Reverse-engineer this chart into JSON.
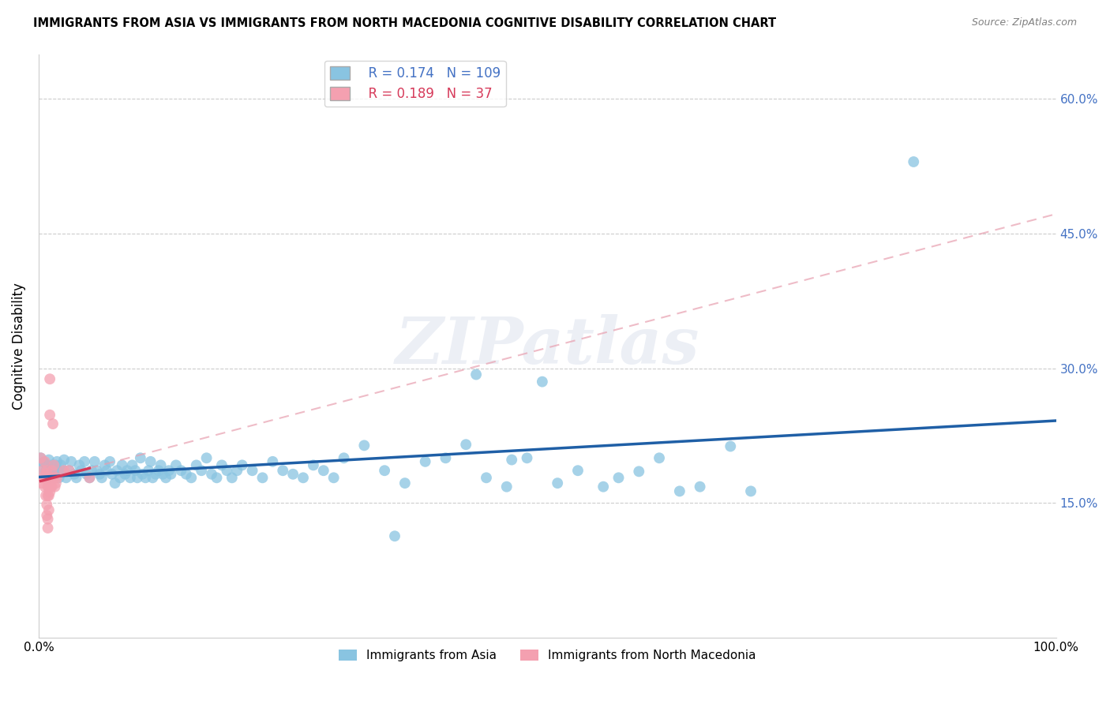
{
  "title": "IMMIGRANTS FROM ASIA VS IMMIGRANTS FROM NORTH MACEDONIA COGNITIVE DISABILITY CORRELATION CHART",
  "source": "Source: ZipAtlas.com",
  "ylabel": "Cognitive Disability",
  "xlim": [
    0,
    1.0
  ],
  "ylim": [
    0,
    0.65
  ],
  "yticks": [
    0.15,
    0.3,
    0.45,
    0.6
  ],
  "ytick_labels": [
    "15.0%",
    "30.0%",
    "45.0%",
    "60.0%"
  ],
  "xticks": [
    0.0,
    0.1,
    0.2,
    0.3,
    0.4,
    0.5,
    0.6,
    0.7,
    0.8,
    0.9,
    1.0
  ],
  "xtick_labels": [
    "0.0%",
    "",
    "",
    "",
    "",
    "",
    "",
    "",
    "",
    "",
    "100.0%"
  ],
  "R_asia": 0.174,
  "N_asia": 109,
  "R_macedonia": 0.189,
  "N_macedonia": 37,
  "color_asia": "#89C4E1",
  "color_macedonia": "#F4A0B0",
  "trendline_asia_color": "#1F5FA6",
  "trendline_macedonia_color": "#D63A5A",
  "trendline_macedonia_dashed_color": "#E8A0B0",
  "watermark_text": "ZIPatlas",
  "asia_points": [
    [
      0.002,
      0.2
    ],
    [
      0.003,
      0.188
    ],
    [
      0.005,
      0.195
    ],
    [
      0.007,
      0.185
    ],
    [
      0.008,
      0.192
    ],
    [
      0.009,
      0.182
    ],
    [
      0.01,
      0.198
    ],
    [
      0.011,
      0.178
    ],
    [
      0.012,
      0.186
    ],
    [
      0.013,
      0.192
    ],
    [
      0.014,
      0.182
    ],
    [
      0.015,
      0.178
    ],
    [
      0.016,
      0.186
    ],
    [
      0.017,
      0.192
    ],
    [
      0.018,
      0.196
    ],
    [
      0.019,
      0.186
    ],
    [
      0.02,
      0.178
    ],
    [
      0.021,
      0.182
    ],
    [
      0.022,
      0.192
    ],
    [
      0.023,
      0.186
    ],
    [
      0.025,
      0.198
    ],
    [
      0.027,
      0.178
    ],
    [
      0.03,
      0.186
    ],
    [
      0.032,
      0.196
    ],
    [
      0.035,
      0.182
    ],
    [
      0.037,
      0.178
    ],
    [
      0.04,
      0.192
    ],
    [
      0.042,
      0.186
    ],
    [
      0.045,
      0.196
    ],
    [
      0.047,
      0.182
    ],
    [
      0.05,
      0.178
    ],
    [
      0.052,
      0.186
    ],
    [
      0.055,
      0.196
    ],
    [
      0.057,
      0.186
    ],
    [
      0.06,
      0.182
    ],
    [
      0.062,
      0.178
    ],
    [
      0.065,
      0.192
    ],
    [
      0.067,
      0.186
    ],
    [
      0.07,
      0.196
    ],
    [
      0.072,
      0.182
    ],
    [
      0.075,
      0.172
    ],
    [
      0.077,
      0.186
    ],
    [
      0.08,
      0.178
    ],
    [
      0.082,
      0.192
    ],
    [
      0.085,
      0.182
    ],
    [
      0.087,
      0.186
    ],
    [
      0.09,
      0.178
    ],
    [
      0.092,
      0.192
    ],
    [
      0.095,
      0.186
    ],
    [
      0.097,
      0.178
    ],
    [
      0.1,
      0.2
    ],
    [
      0.102,
      0.182
    ],
    [
      0.105,
      0.178
    ],
    [
      0.108,
      0.186
    ],
    [
      0.11,
      0.196
    ],
    [
      0.112,
      0.178
    ],
    [
      0.115,
      0.182
    ],
    [
      0.118,
      0.186
    ],
    [
      0.12,
      0.192
    ],
    [
      0.122,
      0.182
    ],
    [
      0.125,
      0.178
    ],
    [
      0.128,
      0.186
    ],
    [
      0.13,
      0.182
    ],
    [
      0.135,
      0.192
    ],
    [
      0.14,
      0.186
    ],
    [
      0.145,
      0.182
    ],
    [
      0.15,
      0.178
    ],
    [
      0.155,
      0.192
    ],
    [
      0.16,
      0.186
    ],
    [
      0.165,
      0.2
    ],
    [
      0.17,
      0.182
    ],
    [
      0.175,
      0.178
    ],
    [
      0.18,
      0.192
    ],
    [
      0.185,
      0.186
    ],
    [
      0.19,
      0.178
    ],
    [
      0.195,
      0.186
    ],
    [
      0.2,
      0.192
    ],
    [
      0.21,
      0.186
    ],
    [
      0.22,
      0.178
    ],
    [
      0.23,
      0.196
    ],
    [
      0.24,
      0.186
    ],
    [
      0.25,
      0.182
    ],
    [
      0.26,
      0.178
    ],
    [
      0.27,
      0.192
    ],
    [
      0.28,
      0.186
    ],
    [
      0.29,
      0.178
    ],
    [
      0.3,
      0.2
    ],
    [
      0.32,
      0.214
    ],
    [
      0.34,
      0.186
    ],
    [
      0.36,
      0.172
    ],
    [
      0.38,
      0.196
    ],
    [
      0.4,
      0.2
    ],
    [
      0.42,
      0.215
    ],
    [
      0.44,
      0.178
    ],
    [
      0.46,
      0.168
    ],
    [
      0.48,
      0.2
    ],
    [
      0.495,
      0.285
    ],
    [
      0.51,
      0.172
    ],
    [
      0.53,
      0.186
    ],
    [
      0.555,
      0.168
    ],
    [
      0.57,
      0.178
    ],
    [
      0.59,
      0.185
    ],
    [
      0.61,
      0.2
    ],
    [
      0.63,
      0.163
    ],
    [
      0.65,
      0.168
    ],
    [
      0.68,
      0.213
    ],
    [
      0.7,
      0.163
    ],
    [
      0.86,
      0.53
    ],
    [
      0.43,
      0.293
    ],
    [
      0.35,
      0.113
    ],
    [
      0.465,
      0.198
    ]
  ],
  "macedonia_points": [
    [
      0.002,
      0.2
    ],
    [
      0.003,
      0.172
    ],
    [
      0.004,
      0.186
    ],
    [
      0.005,
      0.178
    ],
    [
      0.006,
      0.196
    ],
    [
      0.006,
      0.168
    ],
    [
      0.007,
      0.182
    ],
    [
      0.007,
      0.158
    ],
    [
      0.008,
      0.186
    ],
    [
      0.008,
      0.148
    ],
    [
      0.008,
      0.136
    ],
    [
      0.009,
      0.178
    ],
    [
      0.009,
      0.168
    ],
    [
      0.009,
      0.158
    ],
    [
      0.009,
      0.132
    ],
    [
      0.009,
      0.122
    ],
    [
      0.01,
      0.178
    ],
    [
      0.01,
      0.168
    ],
    [
      0.01,
      0.158
    ],
    [
      0.01,
      0.142
    ],
    [
      0.011,
      0.172
    ],
    [
      0.011,
      0.162
    ],
    [
      0.011,
      0.248
    ],
    [
      0.011,
      0.288
    ],
    [
      0.012,
      0.178
    ],
    [
      0.012,
      0.168
    ],
    [
      0.013,
      0.186
    ],
    [
      0.013,
      0.168
    ],
    [
      0.014,
      0.238
    ],
    [
      0.015,
      0.178
    ],
    [
      0.015,
      0.192
    ],
    [
      0.016,
      0.168
    ],
    [
      0.017,
      0.172
    ],
    [
      0.018,
      0.178
    ],
    [
      0.025,
      0.186
    ],
    [
      0.03,
      0.186
    ],
    [
      0.05,
      0.178
    ]
  ],
  "asia_trendline_x": [
    0.0,
    1.0
  ],
  "asia_trendline_y": [
    0.185,
    0.225
  ],
  "macedonia_trendline_x": [
    0.0,
    0.065
  ],
  "macedonia_trendline_y": [
    0.175,
    0.222
  ]
}
